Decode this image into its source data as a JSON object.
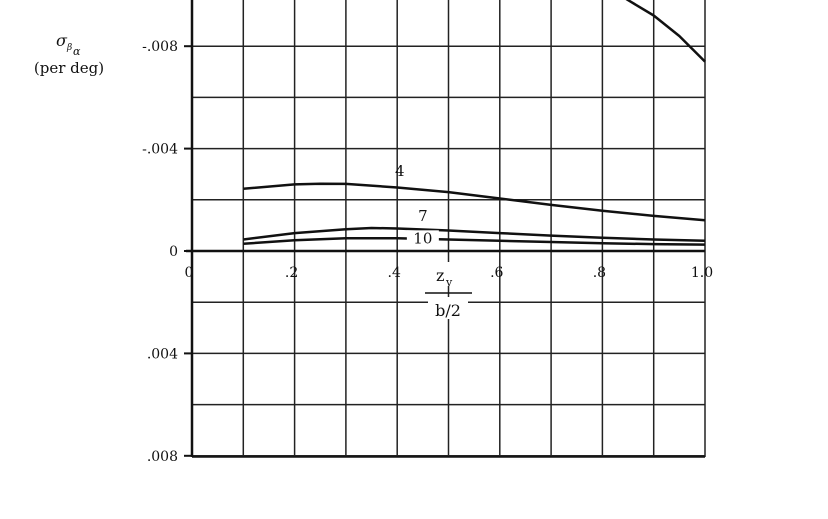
{
  "ylabel": {
    "symbol": "σ",
    "sub1": "β",
    "sub2": "α",
    "units": "(per deg)"
  },
  "xlabel": {
    "numerator": "z",
    "numerator_sub": "v",
    "denominator": "b/2"
  },
  "colors": {
    "ink": "#111111",
    "grid": "#222222",
    "background": "#ffffff"
  },
  "chart_data": {
    "type": "line",
    "xlim": [
      0,
      1.0
    ],
    "ylim_upper": [
      0,
      0.01
    ],
    "ylim_lower": [
      0,
      0.008
    ],
    "grid": true,
    "x_ticks": [
      {
        "value": 0,
        "label": "0"
      },
      {
        "value": 0.2,
        "label": ".2"
      },
      {
        "value": 0.4,
        "label": ".4"
      },
      {
        "value": 0.6,
        "label": ".6"
      },
      {
        "value": 0.8,
        "label": ".8"
      },
      {
        "value": 1.0,
        "label": "1.0"
      }
    ],
    "y_ticks_upper": [
      {
        "value": 0,
        "label": "0"
      },
      {
        "value": 0.004,
        "label": "-.004"
      },
      {
        "value": 0.008,
        "label": "-.008"
      }
    ],
    "y_ticks_lower": [
      {
        "value": 0.004,
        "label": ".004"
      },
      {
        "value": 0.008,
        "label": ".008"
      }
    ],
    "series": [
      {
        "name": "4",
        "x": [
          0.1,
          0.2,
          0.25,
          0.3,
          0.4,
          0.5,
          0.6,
          0.7,
          0.8,
          0.9,
          1.0
        ],
        "y": [
          0.00243,
          0.0026,
          0.00263,
          0.00262,
          0.00248,
          0.0023,
          0.00205,
          0.0018,
          0.00157,
          0.00137,
          0.0012
        ]
      },
      {
        "name": "7",
        "x": [
          0.1,
          0.2,
          0.3,
          0.35,
          0.4,
          0.5,
          0.6,
          0.7,
          0.8,
          0.9,
          1.0
        ],
        "y": [
          0.00045,
          0.0007,
          0.00085,
          0.0009,
          0.00088,
          0.0008,
          0.0007,
          0.0006,
          0.00052,
          0.00045,
          0.0004
        ]
      },
      {
        "name": "10",
        "x": [
          0.1,
          0.2,
          0.3,
          0.4,
          0.5,
          0.6,
          0.7,
          0.8,
          0.9,
          1.0
        ],
        "y": [
          0.00028,
          0.00042,
          0.0005,
          0.0005,
          0.00045,
          0.0004,
          0.00035,
          0.0003,
          0.00027,
          0.00025
        ]
      },
      {
        "name": "",
        "x": [
          0.82,
          0.85,
          0.9,
          0.95,
          1.0
        ],
        "y": [
          0.0102,
          0.0098,
          0.0092,
          0.0084,
          0.0074
        ]
      }
    ]
  }
}
